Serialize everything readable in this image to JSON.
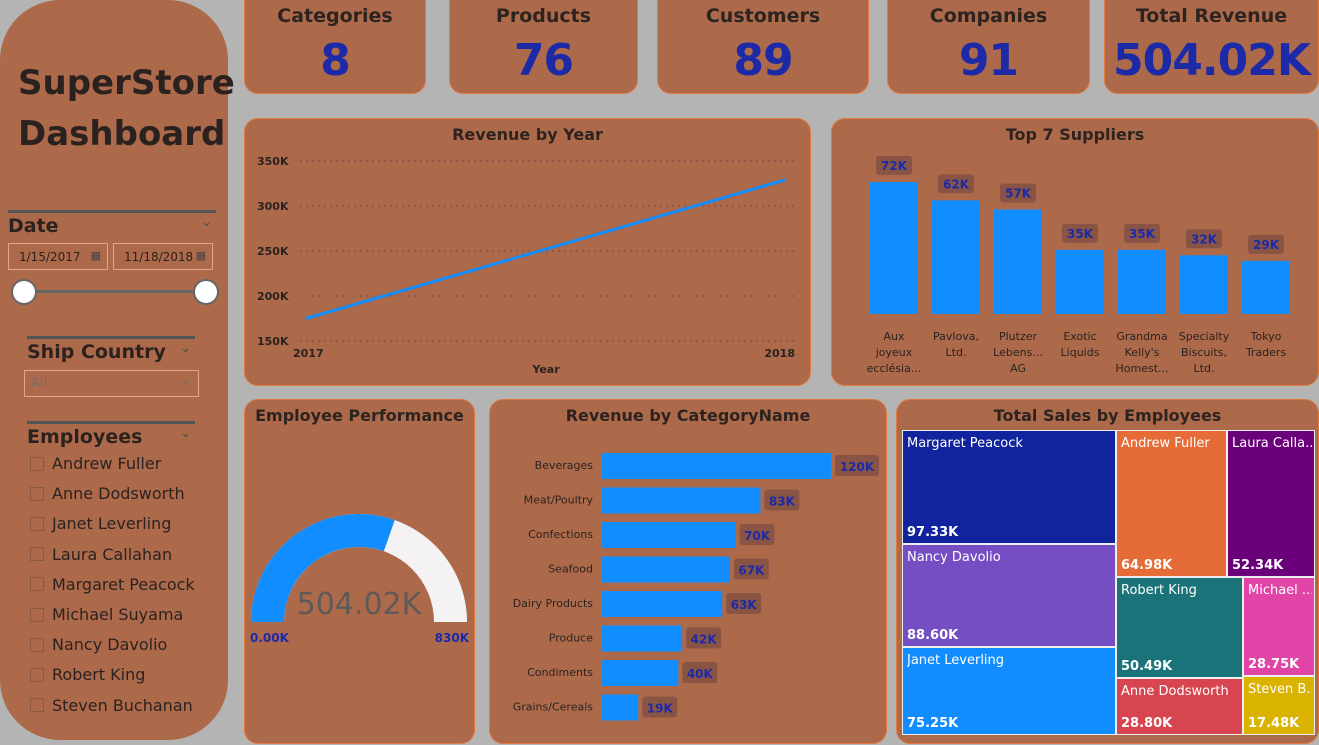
{
  "sidebar": {
    "title_line1": "SuperStore",
    "title_line2": "Dashboard",
    "date": {
      "label": "Date",
      "start": "1/15/2017",
      "end": "11/18/2018"
    },
    "ship_country": {
      "label": "Ship Country",
      "value": "All"
    },
    "employees": {
      "label": "Employees",
      "items": [
        "Andrew Fuller",
        "Anne Dodsworth",
        "Janet Leverling",
        "Laura Callahan",
        "Margaret Peacock",
        "Michael Suyama",
        "Nancy Davolio",
        "Robert King",
        "Steven Buchanan"
      ]
    }
  },
  "kpis": [
    {
      "label": "Categories",
      "value": "8"
    },
    {
      "label": "Products",
      "value": "76"
    },
    {
      "label": "Customers",
      "value": "89"
    },
    {
      "label": "Companies",
      "value": "91"
    },
    {
      "label": "Total Revenue",
      "value": "504.02K"
    }
  ],
  "colors": {
    "card": "#ad6a4b",
    "bar": "#118dff",
    "kpi_value": "#1c2aa8"
  },
  "chart_data": [
    {
      "type": "line",
      "title": "Revenue by Year",
      "xlabel": "Year",
      "x": [
        "2017",
        "2018"
      ],
      "values": [
        175000,
        329000
      ],
      "ylim": [
        150000,
        350000
      ],
      "yticks": [
        "150K",
        "200K",
        "250K",
        "300K",
        "350K"
      ],
      "grid": true
    },
    {
      "type": "bar",
      "title": "Top 7 Suppliers",
      "categories": [
        [
          "Aux",
          "joyeux",
          "ecclésia..."
        ],
        [
          "Pavlova,",
          "Ltd."
        ],
        [
          "Plutzer",
          "Lebens...",
          "AG"
        ],
        [
          "Exotic",
          "Liquids"
        ],
        [
          "Grandma",
          "Kelly's",
          "Homest..."
        ],
        [
          "Specialty",
          "Biscuits,",
          "Ltd."
        ],
        [
          "Tokyo",
          "Traders"
        ]
      ],
      "values": [
        72,
        62,
        57,
        35,
        35,
        32,
        29
      ],
      "labels": [
        "72K",
        "62K",
        "57K",
        "35K",
        "35K",
        "32K",
        "29K"
      ]
    },
    {
      "type": "gauge",
      "title": "Employee Performance",
      "value": 504.02,
      "min": 0,
      "max": 830,
      "value_label": "504.02K",
      "min_label": "0.00K",
      "max_label": "830K"
    },
    {
      "type": "bar",
      "orientation": "horizontal",
      "title": "Revenue by CategoryName",
      "categories": [
        "Beverages",
        "Meat/Poultry",
        "Confections",
        "Seafood",
        "Dairy Products",
        "Produce",
        "Condiments",
        "Grains/Cereals"
      ],
      "values": [
        120,
        83,
        70,
        67,
        63,
        42,
        40,
        19
      ],
      "labels": [
        "120K",
        "83K",
        "70K",
        "67K",
        "63K",
        "42K",
        "40K",
        "19K"
      ]
    },
    {
      "type": "treemap",
      "title": "Total Sales by Employees",
      "items": [
        {
          "name": "Margaret Peacock",
          "value": "97.33K",
          "color": "#12239e"
        },
        {
          "name": "Nancy Davolio",
          "value": "88.60K",
          "color": "#744ec2"
        },
        {
          "name": "Janet Leverling",
          "value": "75.25K",
          "color": "#118dff"
        },
        {
          "name": "Andrew Fuller",
          "value": "64.98K",
          "color": "#e66c37"
        },
        {
          "name": "Laura Calla...",
          "value": "52.34K",
          "color": "#6b007b"
        },
        {
          "name": "Robert King",
          "value": "50.49K",
          "color": "#1a7378"
        },
        {
          "name": "Michael ...",
          "value": "28.75K",
          "color": "#e044a7"
        },
        {
          "name": "Anne Dodsworth",
          "value": "28.80K",
          "color": "#d64550"
        },
        {
          "name": "Steven B...",
          "value": "17.48K",
          "color": "#d9b300"
        }
      ]
    }
  ]
}
